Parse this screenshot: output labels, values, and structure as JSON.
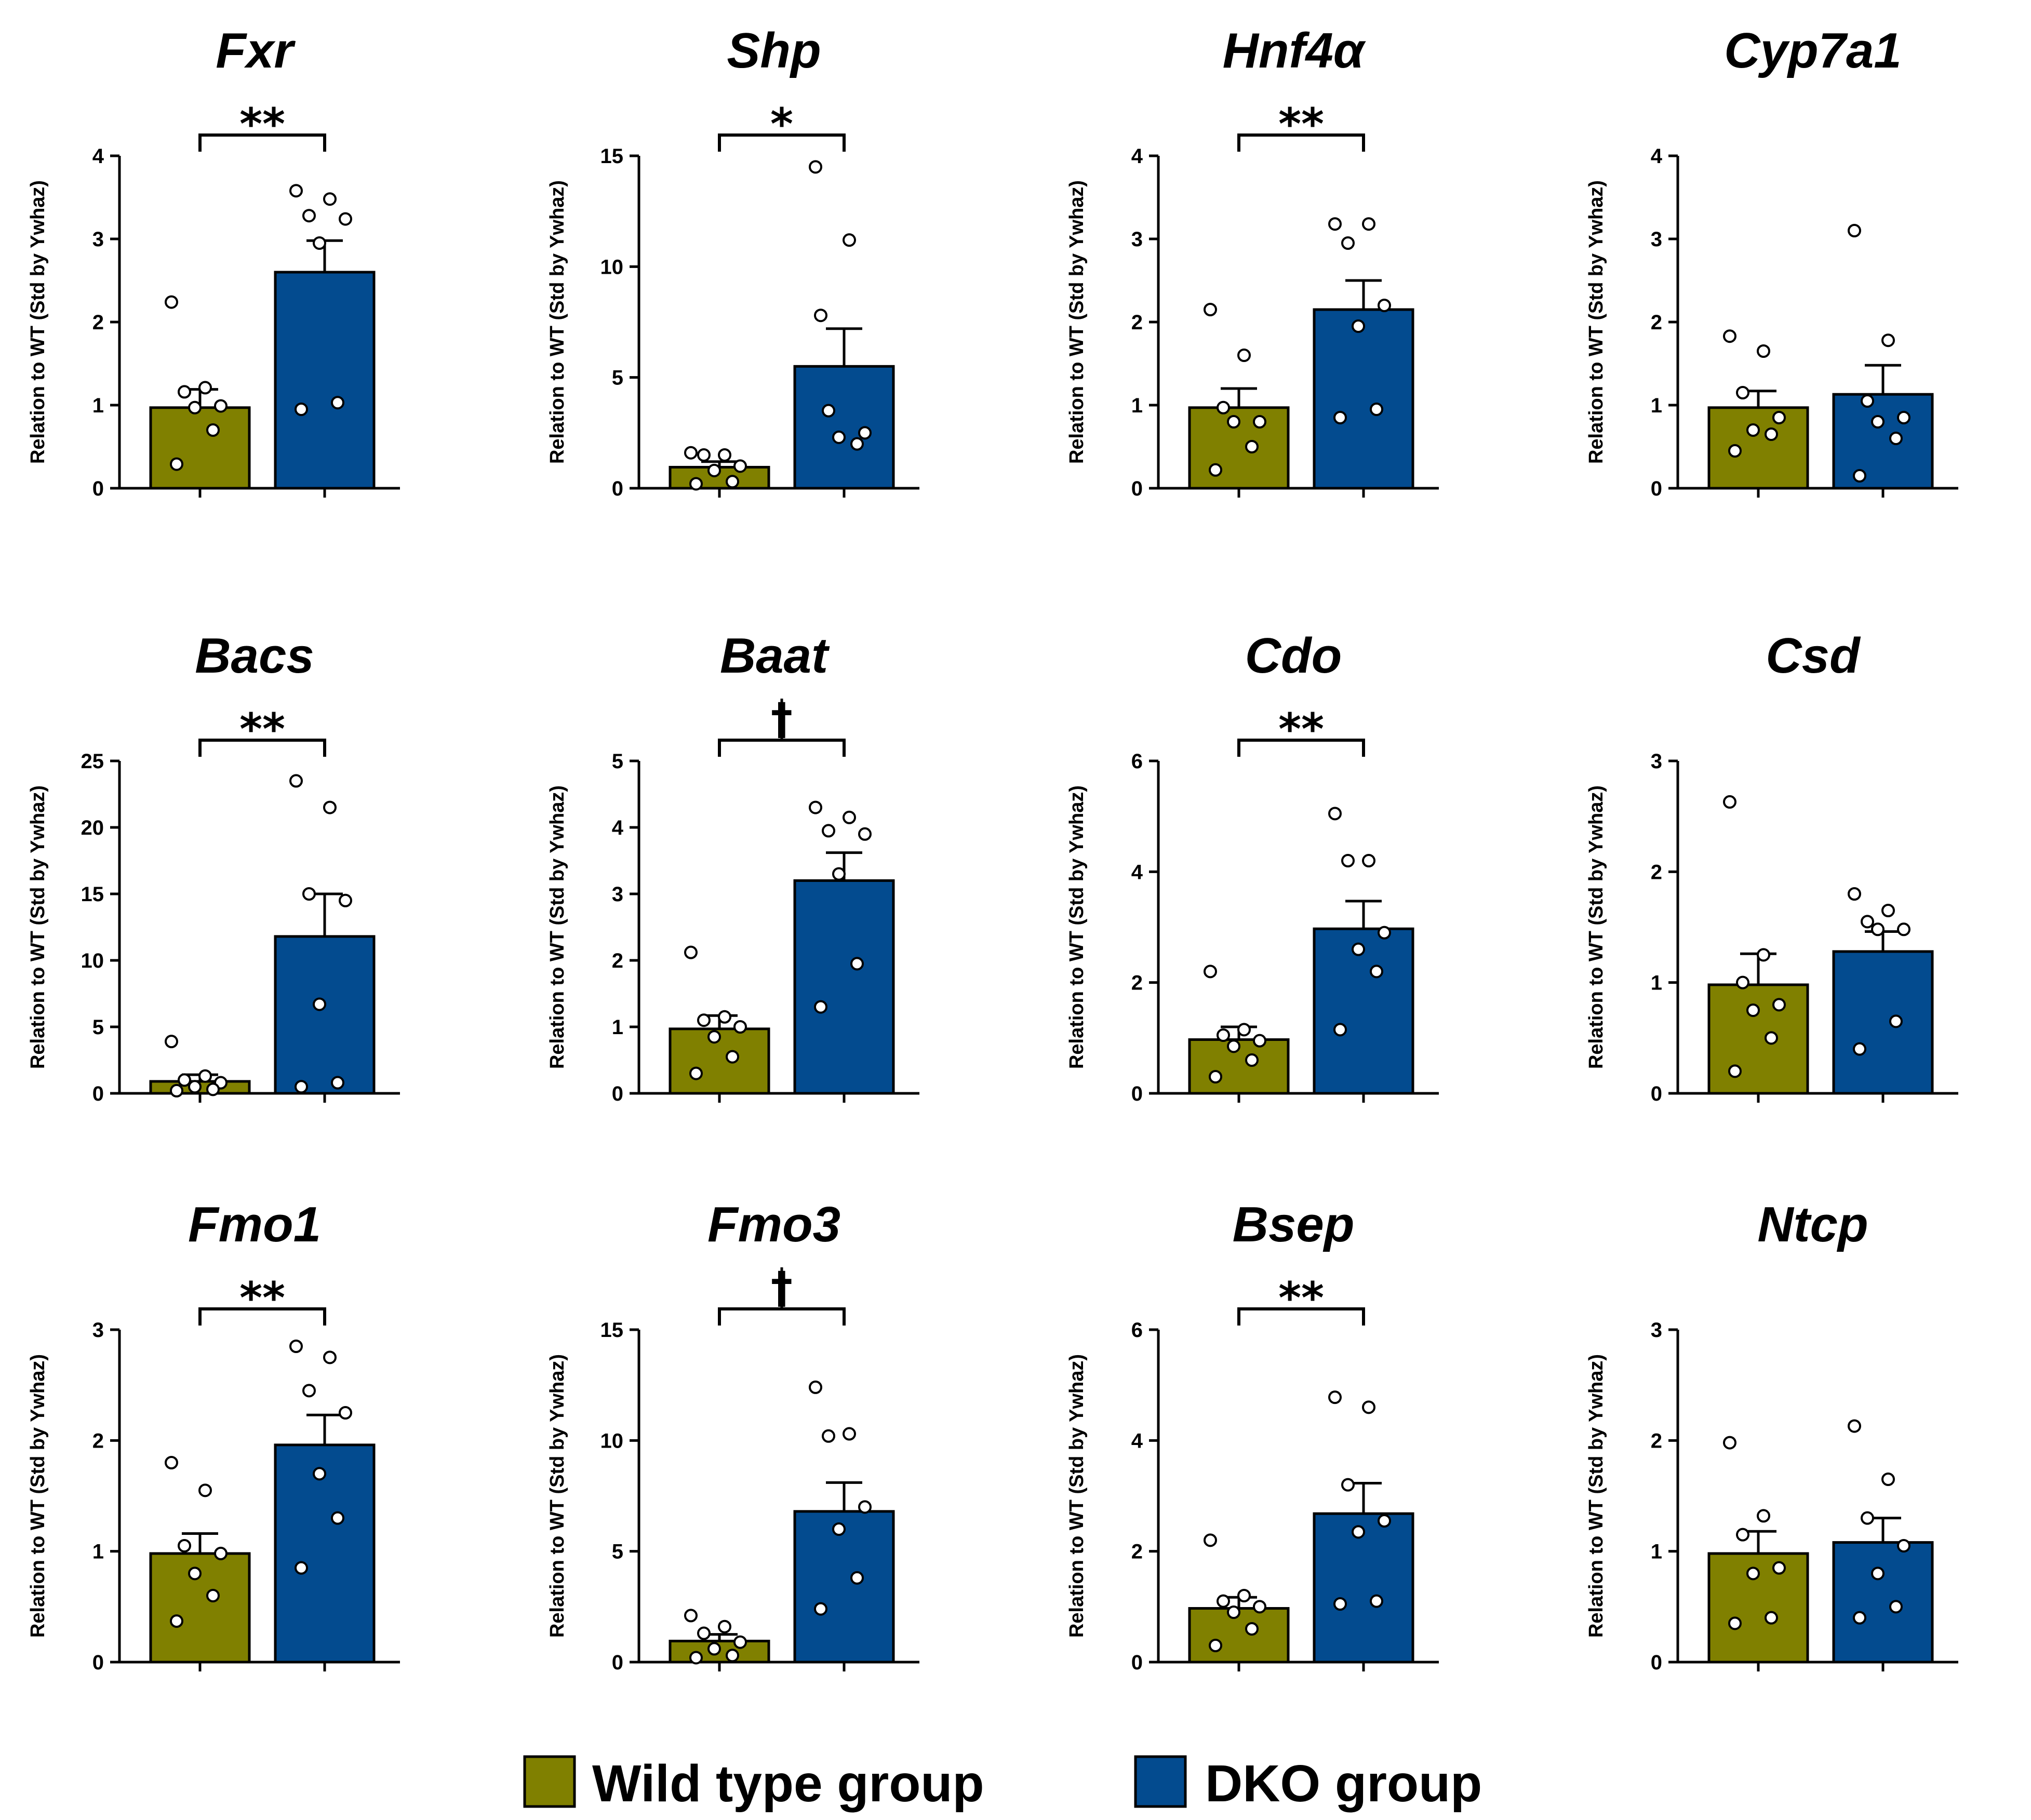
{
  "colors": {
    "wild_type": "#808000",
    "dko": "#034B8F",
    "axis": "#000000",
    "point_fill": "#ffffff"
  },
  "legend": {
    "wild_type_label": "Wild type group",
    "dko_label": "DKO group"
  },
  "chart_data": [
    {
      "type": "bar",
      "title": "Fxr",
      "ylabel": "Relation to WT (Std by Ywhaz)",
      "ylim": [
        0,
        4
      ],
      "yticks": [
        0,
        1,
        2,
        3,
        4
      ],
      "series": [
        {
          "name": "Wild type group",
          "mean": 0.97,
          "sem": 0.22,
          "points": [
            2.24,
            1.21,
            1.16,
            0.99,
            0.97,
            0.7,
            0.29
          ]
        },
        {
          "name": "DKO group",
          "mean": 2.6,
          "sem": 0.38,
          "points": [
            3.58,
            3.48,
            3.28,
            3.24,
            2.95,
            1.03,
            0.95
          ]
        }
      ],
      "significance": "**"
    },
    {
      "type": "bar",
      "title": "Shp",
      "ylabel": "Relation to WT (Std by Ywhaz)",
      "ylim": [
        0,
        15
      ],
      "yticks": [
        0,
        5,
        10,
        15
      ],
      "series": [
        {
          "name": "Wild type group",
          "mean": 0.95,
          "sem": 0.25,
          "points": [
            1.6,
            1.5,
            1.5,
            1.0,
            0.8,
            0.3,
            0.2
          ]
        },
        {
          "name": "DKO group",
          "mean": 5.5,
          "sem": 1.7,
          "points": [
            14.5,
            11.2,
            3.5,
            2.5,
            2.3,
            2.0,
            7.8
          ]
        }
      ],
      "significance": "*"
    },
    {
      "type": "bar",
      "title": "Hnf4α",
      "ylabel": "Relation to WT (Std by Ywhaz)",
      "ylim": [
        0,
        4
      ],
      "yticks": [
        0,
        1,
        2,
        3,
        4
      ],
      "series": [
        {
          "name": "Wild type group",
          "mean": 0.97,
          "sem": 0.23,
          "points": [
            2.15,
            1.6,
            0.97,
            0.8,
            0.8,
            0.5,
            0.22
          ]
        },
        {
          "name": "DKO group",
          "mean": 2.15,
          "sem": 0.35,
          "points": [
            3.18,
            3.18,
            2.95,
            2.2,
            1.95,
            0.95,
            0.85
          ]
        }
      ],
      "significance": "**"
    },
    {
      "type": "bar",
      "title": "Cyp7a1",
      "ylabel": "Relation to WT (Std by Ywhaz)",
      "ylim": [
        0,
        4
      ],
      "yticks": [
        0,
        1,
        2,
        3,
        4
      ],
      "series": [
        {
          "name": "Wild type group",
          "mean": 0.97,
          "sem": 0.2,
          "points": [
            1.83,
            1.65,
            1.15,
            0.85,
            0.7,
            0.65,
            0.45
          ]
        },
        {
          "name": "DKO group",
          "mean": 1.13,
          "sem": 0.35,
          "points": [
            3.1,
            1.78,
            1.05,
            0.85,
            0.8,
            0.6,
            0.15
          ]
        }
      ],
      "significance": ""
    },
    {
      "type": "bar",
      "title": "Bacs",
      "ylabel": "Relation to WT (Std by Ywhaz)",
      "ylim": [
        0,
        25
      ],
      "yticks": [
        0,
        5,
        10,
        15,
        20,
        25
      ],
      "series": [
        {
          "name": "Wild type group",
          "mean": 0.9,
          "sem": 0.5,
          "points": [
            3.9,
            1.3,
            1.0,
            0.8,
            0.5,
            0.3,
            0.2
          ]
        },
        {
          "name": "DKO group",
          "mean": 11.8,
          "sem": 3.2,
          "points": [
            23.5,
            21.5,
            15.0,
            14.5,
            6.7,
            0.8,
            0.5
          ]
        }
      ],
      "significance": "**"
    },
    {
      "type": "bar",
      "title": "Baat",
      "ylabel": "Relation to WT (Std by Ywhaz)",
      "ylim": [
        0,
        5
      ],
      "yticks": [
        0,
        1,
        2,
        3,
        4,
        5
      ],
      "series": [
        {
          "name": "Wild type group",
          "mean": 0.97,
          "sem": 0.2,
          "points": [
            2.12,
            1.15,
            1.1,
            1.0,
            0.85,
            0.55,
            0.3
          ]
        },
        {
          "name": "DKO group",
          "mean": 3.2,
          "sem": 0.42,
          "points": [
            4.3,
            4.15,
            3.95,
            3.9,
            3.3,
            1.95,
            1.3
          ]
        }
      ],
      "significance": "†"
    },
    {
      "type": "bar",
      "title": "Cdo",
      "ylabel": "Relation to WT (Std by Ywhaz)",
      "ylim": [
        0,
        6
      ],
      "yticks": [
        0,
        2,
        4,
        6
      ],
      "series": [
        {
          "name": "Wild type group",
          "mean": 0.97,
          "sem": 0.23,
          "points": [
            2.2,
            1.15,
            1.05,
            0.95,
            0.85,
            0.6,
            0.3
          ]
        },
        {
          "name": "DKO group",
          "mean": 2.97,
          "sem": 0.5,
          "points": [
            5.05,
            4.2,
            4.2,
            2.9,
            2.6,
            2.2,
            1.15
          ]
        }
      ],
      "significance": "**"
    },
    {
      "type": "bar",
      "title": "Csd",
      "ylabel": "Relation to WT (Std by Ywhaz)",
      "ylim": [
        0,
        3
      ],
      "yticks": [
        0,
        1,
        2,
        3
      ],
      "series": [
        {
          "name": "Wild type group",
          "mean": 0.98,
          "sem": 0.28,
          "points": [
            2.63,
            1.25,
            1.0,
            0.8,
            0.75,
            0.5,
            0.2
          ]
        },
        {
          "name": "DKO group",
          "mean": 1.28,
          "sem": 0.18,
          "points": [
            1.8,
            1.65,
            1.55,
            1.48,
            1.48,
            0.65,
            0.4
          ]
        }
      ],
      "significance": ""
    },
    {
      "type": "bar",
      "title": "Fmo1",
      "ylabel": "Relation to WT (Std by Ywhaz)",
      "ylim": [
        0,
        3
      ],
      "yticks": [
        0,
        1,
        2,
        3
      ],
      "series": [
        {
          "name": "Wild type group",
          "mean": 0.98,
          "sem": 0.18,
          "points": [
            1.8,
            1.55,
            1.05,
            0.98,
            0.8,
            0.6,
            0.37
          ]
        },
        {
          "name": "DKO group",
          "mean": 1.96,
          "sem": 0.27,
          "points": [
            2.85,
            2.75,
            2.45,
            2.25,
            1.7,
            1.3,
            0.85
          ]
        }
      ],
      "significance": "**"
    },
    {
      "type": "bar",
      "title": "Fmo3",
      "ylabel": "Relation to WT (Std by Ywhaz)",
      "ylim": [
        0,
        15
      ],
      "yticks": [
        0,
        5,
        10,
        15
      ],
      "series": [
        {
          "name": "Wild type group",
          "mean": 0.95,
          "sem": 0.3,
          "points": [
            2.1,
            1.6,
            1.3,
            0.9,
            0.6,
            0.3,
            0.2
          ]
        },
        {
          "name": "DKO group",
          "mean": 6.8,
          "sem": 1.3,
          "points": [
            12.4,
            10.3,
            10.2,
            7.0,
            6.0,
            3.8,
            2.4
          ]
        }
      ],
      "significance": "†"
    },
    {
      "type": "bar",
      "title": "Bsep",
      "ylabel": "Relation to WT (Std by Ywhaz)",
      "ylim": [
        0,
        6
      ],
      "yticks": [
        0,
        2,
        4,
        6
      ],
      "series": [
        {
          "name": "Wild type group",
          "mean": 0.97,
          "sem": 0.2,
          "points": [
            2.2,
            1.2,
            1.1,
            1.0,
            0.9,
            0.6,
            0.3
          ]
        },
        {
          "name": "DKO group",
          "mean": 2.68,
          "sem": 0.55,
          "points": [
            4.78,
            4.6,
            3.2,
            2.55,
            2.35,
            1.1,
            1.05
          ]
        }
      ],
      "significance": "**"
    },
    {
      "type": "bar",
      "title": "Ntcp",
      "ylabel": "Relation to WT (Std by Ywhaz)",
      "ylim": [
        0,
        3
      ],
      "yticks": [
        0,
        1,
        2,
        3
      ],
      "series": [
        {
          "name": "Wild type group",
          "mean": 0.98,
          "sem": 0.2,
          "points": [
            1.98,
            1.32,
            1.15,
            0.85,
            0.8,
            0.4,
            0.35
          ]
        },
        {
          "name": "DKO group",
          "mean": 1.08,
          "sem": 0.22,
          "points": [
            2.13,
            1.65,
            1.3,
            1.05,
            0.8,
            0.5,
            0.4
          ]
        }
      ],
      "significance": ""
    }
  ]
}
